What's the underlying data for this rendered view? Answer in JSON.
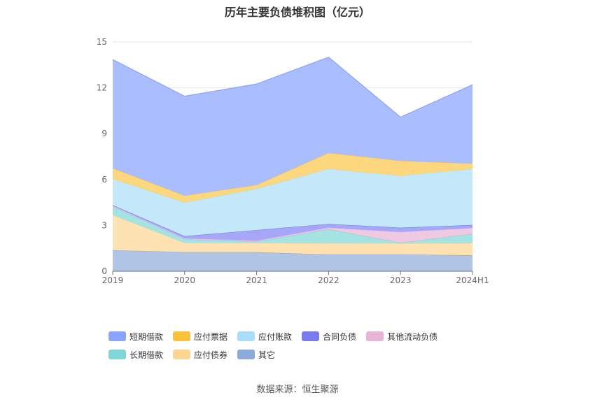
{
  "chart_data": {
    "type": "area",
    "title": "历年主要负债堆积图（亿元）",
    "categories": [
      "2019",
      "2020",
      "2021",
      "2022",
      "2023",
      "2024H1"
    ],
    "ylim": [
      0,
      15
    ],
    "yticks": [
      "0",
      "3",
      "6",
      "9",
      "12",
      "15"
    ],
    "grid": true,
    "legend_position": "bottom",
    "series": [
      {
        "name": "其它",
        "values": [
          1.38,
          1.25,
          1.25,
          1.1,
          1.1,
          1.05
        ],
        "color": "#8eaadb",
        "fill": "#b0c4e6"
      },
      {
        "name": "应付债券",
        "values": [
          2.3,
          0.6,
          0.6,
          0.72,
          0.72,
          0.78
        ],
        "color": "#ffd591",
        "fill": "#ffe2b2"
      },
      {
        "name": "长期借款",
        "values": [
          0.55,
          0.25,
          0.1,
          0.93,
          0.05,
          0.62
        ],
        "color": "#7fd6d6",
        "fill": "#a4e3e1"
      },
      {
        "name": "其他流动负债",
        "values": [
          0.05,
          0.05,
          0.05,
          0.1,
          0.7,
          0.38
        ],
        "color": "#e8b4d6",
        "fill": "#efc9e1"
      },
      {
        "name": "合同负债",
        "values": [
          0.05,
          0.15,
          0.7,
          0.25,
          0.28,
          0.2
        ],
        "color": "#7b7bf0",
        "fill": "#a7a7f7"
      },
      {
        "name": "应付账款",
        "values": [
          1.72,
          2.2,
          2.7,
          3.6,
          3.4,
          3.67
        ],
        "color": "#a8def8",
        "fill": "#c3e8fa"
      },
      {
        "name": "应付票据",
        "values": [
          0.7,
          0.45,
          0.25,
          1.05,
          0.98,
          0.35
        ],
        "color": "#fbc13b",
        "fill": "#fdd77e"
      },
      {
        "name": "短期借款",
        "values": [
          7.1,
          6.5,
          6.6,
          6.25,
          2.85,
          5.15
        ],
        "color": "#8aa3ff",
        "fill": "#a9bdff"
      }
    ],
    "legend_order": [
      "短期借款",
      "应付票据",
      "应付账款",
      "合同负债",
      "其他流动负债",
      "长期借款",
      "应付债券",
      "其它"
    ]
  },
  "source_text": "数据来源：恒生聚源"
}
